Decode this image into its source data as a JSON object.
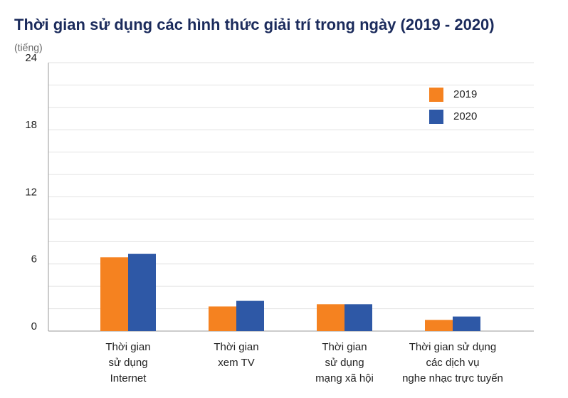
{
  "chart_data": {
    "type": "bar",
    "title": "Thời gian sử dụng các hình thức giải trí trong ngày (2019 - 2020)",
    "y_label": "(tiếng)",
    "categories": [
      [
        "Thời gian",
        "sử dụng",
        "Internet"
      ],
      [
        "Thời gian",
        "xem TV"
      ],
      [
        "Thời gian",
        "sử dụng",
        "mạng xã hội"
      ],
      [
        "Thời gian sử dụng",
        "các dịch vụ",
        "nghe nhạc trực tuyến"
      ]
    ],
    "series": [
      {
        "name": "2019",
        "color": "#f58220",
        "values": [
          6.6,
          2.2,
          2.4,
          1.0
        ]
      },
      {
        "name": "2020",
        "color": "#2e58a6",
        "values": [
          6.9,
          2.7,
          2.4,
          1.3
        ]
      }
    ],
    "ylim": [
      0,
      24
    ],
    "yticks": [
      0,
      6,
      12,
      18,
      24
    ],
    "minor_yticks": [
      2,
      4,
      8,
      10,
      14,
      16,
      20,
      22
    ],
    "grid": true,
    "legend": "upper right"
  }
}
